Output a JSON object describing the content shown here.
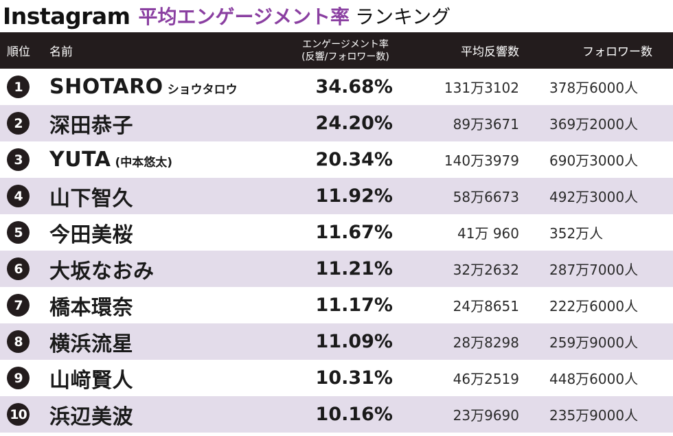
{
  "title": {
    "brand": "Instagram",
    "main": "平均エンゲージメント率",
    "sub": "ランキング"
  },
  "colors": {
    "accent": "#8a3fa1",
    "header_bg": "#231c1d",
    "stripe": "#e3dcea"
  },
  "chart_data": {
    "type": "table",
    "columns": {
      "rank": "順位",
      "name": "名前",
      "rate_line1": "エンゲージメント率",
      "rate_line2": "(反響/フォロワー数)",
      "avg": "平均反響数",
      "followers": "フォロワー数"
    },
    "rows": [
      {
        "rank": "1",
        "name": "SHOTARO",
        "name_sub": "ショウタロウ",
        "rate": "34.68%",
        "avg": "131万3102",
        "followers": "378万6000人"
      },
      {
        "rank": "2",
        "name": "深田恭子",
        "name_sub": "",
        "rate": "24.20%",
        "avg": "89万3671",
        "followers": "369万2000人"
      },
      {
        "rank": "3",
        "name": "YUTA",
        "name_sub": "(中本悠太)",
        "rate": "20.34%",
        "avg": "140万3979",
        "followers": "690万3000人"
      },
      {
        "rank": "4",
        "name": "山下智久",
        "name_sub": "",
        "rate": "11.92%",
        "avg": "58万6673",
        "followers": "492万3000人"
      },
      {
        "rank": "5",
        "name": "今田美桜",
        "name_sub": "",
        "rate": "11.67%",
        "avg": "41万 960",
        "followers": "352万人"
      },
      {
        "rank": "6",
        "name": "大坂なおみ",
        "name_sub": "",
        "rate": "11.21%",
        "avg": "32万2632",
        "followers": "287万7000人"
      },
      {
        "rank": "7",
        "name": "橋本環奈",
        "name_sub": "",
        "rate": "11.17%",
        "avg": "24万8651",
        "followers": "222万6000人"
      },
      {
        "rank": "8",
        "name": "横浜流星",
        "name_sub": "",
        "rate": "11.09%",
        "avg": "28万8298",
        "followers": "259万9000人"
      },
      {
        "rank": "9",
        "name": "山﨑賢人",
        "name_sub": "",
        "rate": "10.31%",
        "avg": "46万2519",
        "followers": "448万6000人"
      },
      {
        "rank": "10",
        "name": "浜辺美波",
        "name_sub": "",
        "rate": "10.16%",
        "avg": "23万9690",
        "followers": "235万9000人"
      }
    ]
  }
}
